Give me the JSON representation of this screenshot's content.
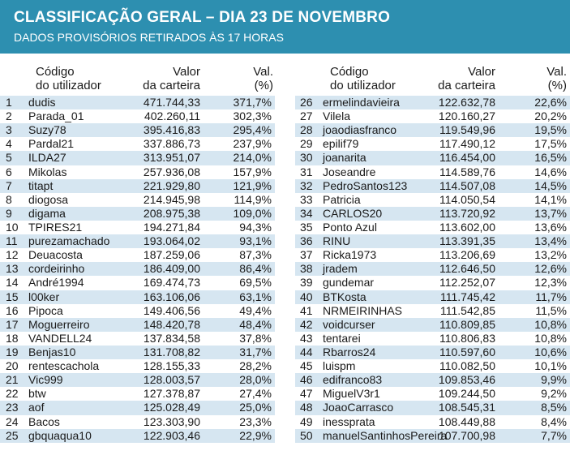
{
  "header": {
    "title": "CLASSIFICAÇÃO GERAL – DIA 23 DE NOVEMBRO",
    "subtitle": "DADOS PROVISÓRIOS RETIRADOS ÀS 17 HORAS"
  },
  "colors": {
    "header_bg": "#2d8fb0",
    "row_shade": "#d6e6f1"
  },
  "columns": {
    "code_line1": "Código",
    "code_line2": "do utilizador",
    "value_line1": "Valor",
    "value_line2": "da carteira",
    "pct_line1": "Val.",
    "pct_line2": "(%)"
  },
  "left_rows": [
    {
      "rank": "1",
      "code": "dudis",
      "value": "471.744,33",
      "pct": "371,7%"
    },
    {
      "rank": "2",
      "code": "Parada_01",
      "value": "402.260,11",
      "pct": "302,3%"
    },
    {
      "rank": "3",
      "code": "Suzy78",
      "value": "395.416,83",
      "pct": "295,4%"
    },
    {
      "rank": "4",
      "code": "Pardal21",
      "value": "337.886,73",
      "pct": "237,9%"
    },
    {
      "rank": "5",
      "code": "ILDA27",
      "value": "313.951,07",
      "pct": "214,0%"
    },
    {
      "rank": "6",
      "code": "Mikolas",
      "value": "257.936,08",
      "pct": "157,9%"
    },
    {
      "rank": "7",
      "code": "titapt",
      "value": "221.929,80",
      "pct": "121,9%"
    },
    {
      "rank": "8",
      "code": "diogosa",
      "value": "214.945,98",
      "pct": "114,9%"
    },
    {
      "rank": "9",
      "code": "digama",
      "value": "208.975,38",
      "pct": "109,0%"
    },
    {
      "rank": "10",
      "code": "TPIRES21",
      "value": "194.271,84",
      "pct": "94,3%"
    },
    {
      "rank": "11",
      "code": "purezamachado",
      "value": "193.064,02",
      "pct": "93,1%"
    },
    {
      "rank": "12",
      "code": "Deuacosta",
      "value": "187.259,06",
      "pct": "87,3%"
    },
    {
      "rank": "13",
      "code": "cordeirinho",
      "value": "186.409,00",
      "pct": "86,4%"
    },
    {
      "rank": "14",
      "code": "André1994",
      "value": "169.474,73",
      "pct": "69,5%"
    },
    {
      "rank": "15",
      "code": "l00ker",
      "value": "163.106,06",
      "pct": "63,1%"
    },
    {
      "rank": "16",
      "code": "Pipoca",
      "value": "149.406,56",
      "pct": "49,4%"
    },
    {
      "rank": "17",
      "code": "Moguerreiro",
      "value": "148.420,78",
      "pct": "48,4%"
    },
    {
      "rank": "18",
      "code": "VANDELL24",
      "value": "137.834,58",
      "pct": "37,8%"
    },
    {
      "rank": "19",
      "code": "Benjas10",
      "value": "131.708,82",
      "pct": "31,7%"
    },
    {
      "rank": "20",
      "code": "rentescachola",
      "value": "128.155,33",
      "pct": "28,2%"
    },
    {
      "rank": "21",
      "code": "Vic999",
      "value": "128.003,57",
      "pct": "28,0%"
    },
    {
      "rank": "22",
      "code": "btw",
      "value": "127.378,87",
      "pct": "27,4%"
    },
    {
      "rank": "23",
      "code": "aof",
      "value": "125.028,49",
      "pct": "25,0%"
    },
    {
      "rank": "24",
      "code": "Bacos",
      "value": "123.303,90",
      "pct": "23,3%"
    },
    {
      "rank": "25",
      "code": "gbquaqua10",
      "value": "122.903,46",
      "pct": "22,9%"
    }
  ],
  "right_rows": [
    {
      "rank": "26",
      "code": "ermelindavieira",
      "value": "122.632,78",
      "pct": "22,6%"
    },
    {
      "rank": "27",
      "code": "Vilela",
      "value": "120.160,27",
      "pct": "20,2%"
    },
    {
      "rank": "28",
      "code": "joaodiasfranco",
      "value": "119.549,96",
      "pct": "19,5%"
    },
    {
      "rank": "29",
      "code": "epilif79",
      "value": "117.490,12",
      "pct": "17,5%"
    },
    {
      "rank": "30",
      "code": "joanarita",
      "value": "116.454,00",
      "pct": "16,5%"
    },
    {
      "rank": "31",
      "code": "Joseandre",
      "value": "114.589,76",
      "pct": "14,6%"
    },
    {
      "rank": "32",
      "code": "PedroSantos123",
      "value": "114.507,08",
      "pct": "14,5%"
    },
    {
      "rank": "33",
      "code": "Patricia",
      "value": "114.050,54",
      "pct": "14,1%"
    },
    {
      "rank": "34",
      "code": "CARLOS20",
      "value": "113.720,92",
      "pct": "13,7%"
    },
    {
      "rank": "35",
      "code": "Ponto Azul",
      "value": "113.602,00",
      "pct": "13,6%"
    },
    {
      "rank": "36",
      "code": "RINU",
      "value": "113.391,35",
      "pct": "13,4%"
    },
    {
      "rank": "37",
      "code": "Ricka1973",
      "value": "113.206,69",
      "pct": "13,2%"
    },
    {
      "rank": "38",
      "code": "jradem",
      "value": "112.646,50",
      "pct": "12,6%"
    },
    {
      "rank": "39",
      "code": "gundemar",
      "value": "112.252,07",
      "pct": "12,3%"
    },
    {
      "rank": "40",
      "code": "BTKosta",
      "value": "111.745,42",
      "pct": "11,7%"
    },
    {
      "rank": "41",
      "code": "NRMEIRINHAS",
      "value": "111.542,85",
      "pct": "11,5%"
    },
    {
      "rank": "42",
      "code": "voidcurser",
      "value": "110.809,85",
      "pct": "10,8%"
    },
    {
      "rank": "43",
      "code": "tentarei",
      "value": "110.806,83",
      "pct": "10,8%"
    },
    {
      "rank": "44",
      "code": "Rbarros24",
      "value": "110.597,60",
      "pct": "10,6%"
    },
    {
      "rank": "45",
      "code": "luispm",
      "value": "110.082,50",
      "pct": "10,1%"
    },
    {
      "rank": "46",
      "code": "edifranco83",
      "value": "109.853,46",
      "pct": "9,9%"
    },
    {
      "rank": "47",
      "code": "MiguelV3r1",
      "value": "109.244,50",
      "pct": "9,2%"
    },
    {
      "rank": "48",
      "code": "JoaoCarrasco",
      "value": "108.545,31",
      "pct": "8,5%"
    },
    {
      "rank": "49",
      "code": "inessprata",
      "value": "108.449,88",
      "pct": "8,4%"
    },
    {
      "rank": "50",
      "code": "manuelSantinhosPereira",
      "value": "107.700,98",
      "pct": "7,7%"
    }
  ]
}
